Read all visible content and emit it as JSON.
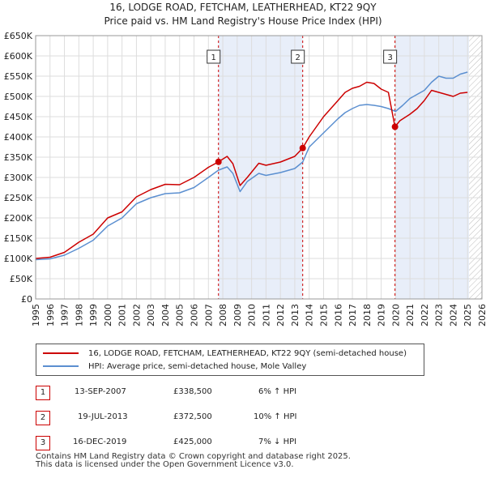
{
  "title": "16, LODGE ROAD, FETCHAM, LEATHERHEAD, KT22 9QY",
  "subtitle": "Price paid vs. HM Land Registry's House Price Index (HPI)",
  "chart_data": {
    "type": "line",
    "x_range": [
      1995,
      2026
    ],
    "ylim": [
      0,
      650000
    ],
    "y_ticks": [
      0,
      50000,
      100000,
      150000,
      200000,
      250000,
      300000,
      350000,
      400000,
      450000,
      500000,
      550000,
      600000,
      650000
    ],
    "y_tick_labels": [
      "£0",
      "£50K",
      "£100K",
      "£150K",
      "£200K",
      "£250K",
      "£300K",
      "£350K",
      "£400K",
      "£450K",
      "£500K",
      "£550K",
      "£600K",
      "£650K"
    ],
    "x_ticks": [
      1995,
      1996,
      1997,
      1998,
      1999,
      2000,
      2001,
      2002,
      2003,
      2004,
      2005,
      2006,
      2007,
      2008,
      2009,
      2010,
      2011,
      2012,
      2013,
      2014,
      2015,
      2016,
      2017,
      2018,
      2019,
      2020,
      2021,
      2022,
      2023,
      2024,
      2025,
      2026
    ],
    "grid": true,
    "future_hatch_from": 2025.1,
    "series": [
      {
        "name": "16, LODGE ROAD, FETCHAM, LEATHERHEAD, KT22 9QY (semi-detached house)",
        "color": "#cc0000",
        "x": [
          1995.0,
          1996.0,
          1997.0,
          1998.0,
          1999.0,
          2000.0,
          2001.0,
          2002.0,
          2003.0,
          2004.0,
          2005.0,
          2006.0,
          2007.0,
          2007.7,
          2008.3,
          2008.7,
          2009.2,
          2009.7,
          2010.5,
          2011.0,
          2012.0,
          2013.0,
          2013.55,
          2014.0,
          2015.0,
          2016.0,
          2016.5,
          2017.0,
          2017.5,
          2018.0,
          2018.5,
          2019.0,
          2019.5,
          2019.96,
          2020.3,
          2021.0,
          2021.5,
          2022.0,
          2022.5,
          2023.0,
          2023.5,
          2024.0,
          2024.5,
          2025.0
        ],
        "y": [
          100000,
          103000,
          115000,
          140000,
          160000,
          200000,
          215000,
          252000,
          270000,
          283000,
          282000,
          300000,
          325000,
          338500,
          352000,
          334000,
          280000,
          300000,
          335000,
          330000,
          338000,
          352000,
          372500,
          400000,
          450000,
          490000,
          510000,
          520000,
          525000,
          535000,
          532000,
          518000,
          510000,
          425000,
          440000,
          456000,
          470000,
          490000,
          515000,
          510000,
          505000,
          500000,
          508000,
          510000
        ]
      },
      {
        "name": "HPI: Average price, semi-detached house, Mole Valley",
        "color": "#5b8fd0",
        "x": [
          1995.0,
          1996.0,
          1997.0,
          1998.0,
          1999.0,
          2000.0,
          2001.0,
          2002.0,
          2003.0,
          2004.0,
          2005.0,
          2006.0,
          2007.0,
          2007.7,
          2008.3,
          2008.7,
          2009.2,
          2009.7,
          2010.5,
          2011.0,
          2012.0,
          2013.0,
          2013.55,
          2014.0,
          2015.0,
          2016.0,
          2016.5,
          2017.0,
          2017.5,
          2018.0,
          2018.5,
          2019.0,
          2019.5,
          2020.0,
          2020.5,
          2021.0,
          2021.5,
          2022.0,
          2022.5,
          2023.0,
          2023.5,
          2024.0,
          2024.5,
          2025.0
        ],
        "y": [
          97000,
          99000,
          108000,
          125000,
          145000,
          180000,
          200000,
          235000,
          250000,
          260000,
          262000,
          275000,
          300000,
          318000,
          326000,
          310000,
          265000,
          290000,
          310000,
          305000,
          312000,
          322000,
          338000,
          375000,
          410000,
          445000,
          460000,
          470000,
          478000,
          480000,
          478000,
          475000,
          470000,
          463000,
          478000,
          495000,
          505000,
          515000,
          535000,
          550000,
          545000,
          545000,
          555000,
          560000
        ]
      }
    ],
    "sale_markers": [
      {
        "label": "1",
        "x": 2007.7,
        "y": 338500
      },
      {
        "label": "2",
        "x": 2013.55,
        "y": 372500
      },
      {
        "label": "3",
        "x": 2019.96,
        "y": 425000
      }
    ]
  },
  "legend": {
    "property": "16, LODGE ROAD, FETCHAM, LEATHERHEAD, KT22 9QY (semi-detached house)",
    "hpi": "HPI: Average price, semi-detached house, Mole Valley"
  },
  "sales": [
    {
      "num": "1",
      "date": "13-SEP-2007",
      "price": "£338,500",
      "change": "6% ↑ HPI"
    },
    {
      "num": "2",
      "date": "19-JUL-2013",
      "price": "£372,500",
      "change": "10% ↑ HPI"
    },
    {
      "num": "3",
      "date": "16-DEC-2019",
      "price": "£425,000",
      "change": "7% ↓ HPI"
    }
  ],
  "footer": {
    "line1": "Contains HM Land Registry data © Crown copyright and database right 2025.",
    "line2": "This data is licensed under the Open Government Licence v3.0."
  }
}
